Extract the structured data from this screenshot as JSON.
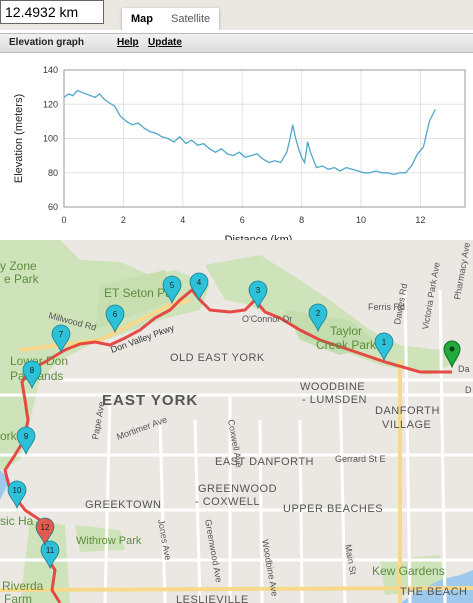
{
  "distance": "12.4932 km",
  "map_tabs": [
    {
      "label": "Map",
      "active": true
    },
    {
      "label": "Satellite",
      "active": false
    }
  ],
  "elevation_panel": {
    "title": "Elevation graph",
    "help_label": "Help",
    "update_label": "Update"
  },
  "chart_data": {
    "type": "line",
    "xlabel": "Distance (km)",
    "ylabel": "Elevation (meters)",
    "xlim": [
      0,
      13.5
    ],
    "ylim": [
      60,
      140
    ],
    "xticks": [
      0,
      2,
      4,
      6,
      8,
      10,
      12
    ],
    "yticks": [
      60,
      80,
      100,
      120,
      140
    ],
    "grid": true,
    "line_color": "#4fa8c8",
    "x": [
      0,
      0.15,
      0.3,
      0.45,
      0.6,
      0.75,
      0.9,
      1.05,
      1.2,
      1.35,
      1.5,
      1.7,
      1.9,
      2.1,
      2.3,
      2.5,
      2.7,
      2.9,
      3.1,
      3.3,
      3.5,
      3.7,
      3.9,
      4.1,
      4.3,
      4.5,
      4.7,
      4.9,
      5.1,
      5.3,
      5.5,
      5.7,
      5.9,
      6.1,
      6.3,
      6.5,
      6.7,
      6.9,
      7.1,
      7.3,
      7.5,
      7.6,
      7.7,
      7.8,
      7.9,
      8.0,
      8.1,
      8.2,
      8.3,
      8.5,
      8.7,
      8.9,
      9.1,
      9.3,
      9.5,
      9.7,
      9.9,
      10.1,
      10.3,
      10.5,
      10.7,
      10.9,
      11.1,
      11.3,
      11.5,
      11.7,
      11.9,
      12.1,
      12.3,
      12.5
    ],
    "y": [
      124,
      126,
      125,
      128,
      127,
      126,
      125,
      124,
      126,
      123,
      121,
      119,
      113,
      110,
      108,
      109,
      106,
      104,
      103,
      101,
      100,
      98,
      101,
      97,
      99,
      96,
      97,
      94,
      92,
      94,
      91,
      90,
      92,
      89,
      90,
      91,
      88,
      86,
      87,
      86,
      92,
      99,
      108,
      100,
      94,
      89,
      86,
      98,
      92,
      83,
      84,
      82,
      83,
      81,
      83,
      82,
      81,
      80,
      80,
      81,
      80,
      80,
      79,
      80,
      80,
      84,
      91,
      95,
      110,
      117
    ]
  },
  "map": {
    "places": [
      {
        "name": "y Zone",
        "kind": "park"
      },
      {
        "name": "e Park",
        "kind": "park"
      },
      {
        "name": "ET Seton Pa",
        "kind": "park"
      },
      {
        "name": "Millwood Rd",
        "kind": "road"
      },
      {
        "name": "Don Valley Pkwy",
        "kind": "road"
      },
      {
        "name": "O'Connor Dr",
        "kind": "road"
      },
      {
        "name": "Taylor",
        "kind": "park"
      },
      {
        "name": "Creek Park",
        "kind": "park"
      },
      {
        "name": "Ferris Rd",
        "kind": "road"
      },
      {
        "name": "Dawes Rd",
        "kind": "road"
      },
      {
        "name": "Victoria Park Ave",
        "kind": "road"
      },
      {
        "name": "Pharmacy Ave",
        "kind": "road"
      },
      {
        "name": "Lower Don",
        "kind": "park"
      },
      {
        "name": "Parklands",
        "kind": "park"
      },
      {
        "name": "OLD EAST YORK",
        "kind": "area"
      },
      {
        "name": "WOODBINE",
        "kind": "area"
      },
      {
        "name": "- LUMSDEN",
        "kind": "area"
      },
      {
        "name": "EAST YORK",
        "kind": "city"
      },
      {
        "name": "DANFORTH",
        "kind": "area"
      },
      {
        "name": "VILLAGE",
        "kind": "area"
      },
      {
        "name": "Pape Ave",
        "kind": "road"
      },
      {
        "name": "Mortimer Ave",
        "kind": "road"
      },
      {
        "name": "Coxwell Ave",
        "kind": "road"
      },
      {
        "name": "EAST DANFORTH",
        "kind": "area"
      },
      {
        "name": "Gerrard St E",
        "kind": "road"
      },
      {
        "name": "GREEKTOWN",
        "kind": "area"
      },
      {
        "name": "GREENWOOD",
        "kind": "area"
      },
      {
        "name": "- COXWELL",
        "kind": "area"
      },
      {
        "name": "UPPER BEACHES",
        "kind": "area"
      },
      {
        "name": "Jones Ave",
        "kind": "road"
      },
      {
        "name": "Greenwood Ave",
        "kind": "road"
      },
      {
        "name": "Woodbine Ave",
        "kind": "road"
      },
      {
        "name": "Main St",
        "kind": "road"
      },
      {
        "name": "Withrow Park",
        "kind": "park"
      },
      {
        "name": "Kew Gardens",
        "kind": "park"
      },
      {
        "name": "THE BEACH",
        "kind": "area"
      },
      {
        "name": "LESLIEVILLE",
        "kind": "area"
      },
      {
        "name": "Riverda",
        "kind": "park"
      },
      {
        "name": "Farm",
        "kind": "park"
      },
      {
        "name": "orks",
        "kind": "park"
      },
      {
        "name": "sic Ha",
        "kind": "park"
      },
      {
        "name": "Da",
        "kind": "road"
      },
      {
        "name": "D",
        "kind": "road"
      }
    ],
    "markers": [
      "1",
      "2",
      "3",
      "4",
      "5",
      "6",
      "7",
      "8",
      "9",
      "10",
      "11",
      "12"
    ]
  }
}
